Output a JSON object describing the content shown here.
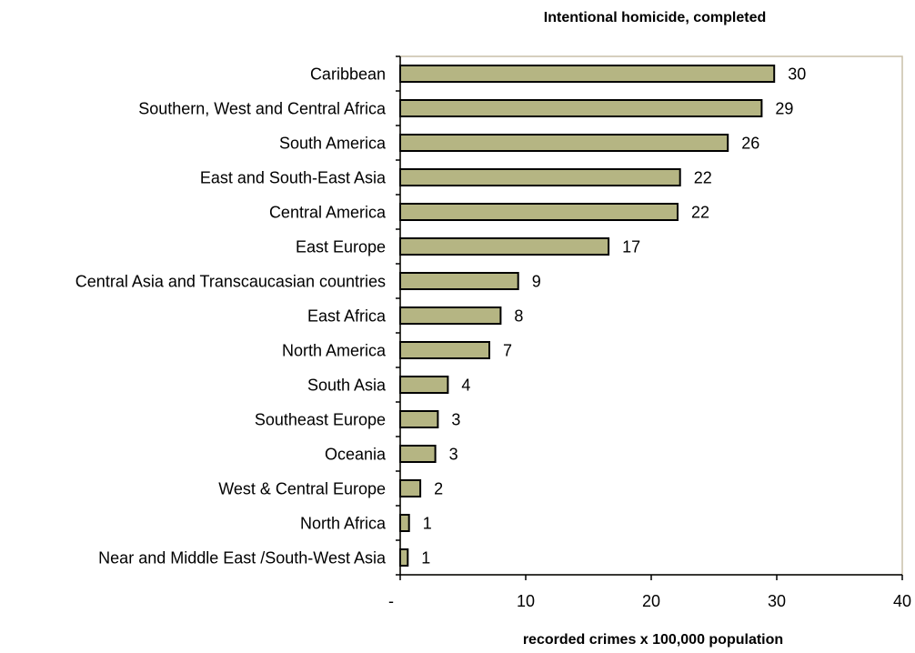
{
  "chart_data": {
    "type": "bar",
    "orientation": "horizontal",
    "title": "Intentional homicide, completed",
    "xlabel": "recorded crimes x 100,000 population",
    "ylabel": "",
    "xlim": [
      0,
      40
    ],
    "x_ticks": [
      {
        "value": 0,
        "label": "-"
      },
      {
        "value": 10,
        "label": "10"
      },
      {
        "value": 20,
        "label": "20"
      },
      {
        "value": 30,
        "label": "30"
      },
      {
        "value": 40,
        "label": "40"
      }
    ],
    "grid": false,
    "categories": [
      "Caribbean",
      "Southern, West and Central Africa",
      "South America",
      "East and South-East Asia",
      "Central America",
      "East Europe",
      "Central Asia  and Transcaucasian countries",
      "East Africa",
      "North America",
      "South Asia",
      "Southeast Europe",
      "Oceania",
      "West & Central Europe",
      "North Africa",
      "Near and Middle East /South-West Asia"
    ],
    "values": [
      29.8,
      28.8,
      26.1,
      22.3,
      22.1,
      16.6,
      9.4,
      8.0,
      7.1,
      3.8,
      3.0,
      2.8,
      1.6,
      0.7,
      0.6
    ],
    "data_labels": [
      "30",
      "29",
      "26",
      "22",
      "22",
      "17",
      "9",
      "8",
      "7",
      "4",
      "3",
      "3",
      "2",
      "1",
      "1"
    ],
    "colors": {
      "bar": "#b5b583",
      "bar_edge": "#000000",
      "frame": "#c9bfa8"
    }
  }
}
